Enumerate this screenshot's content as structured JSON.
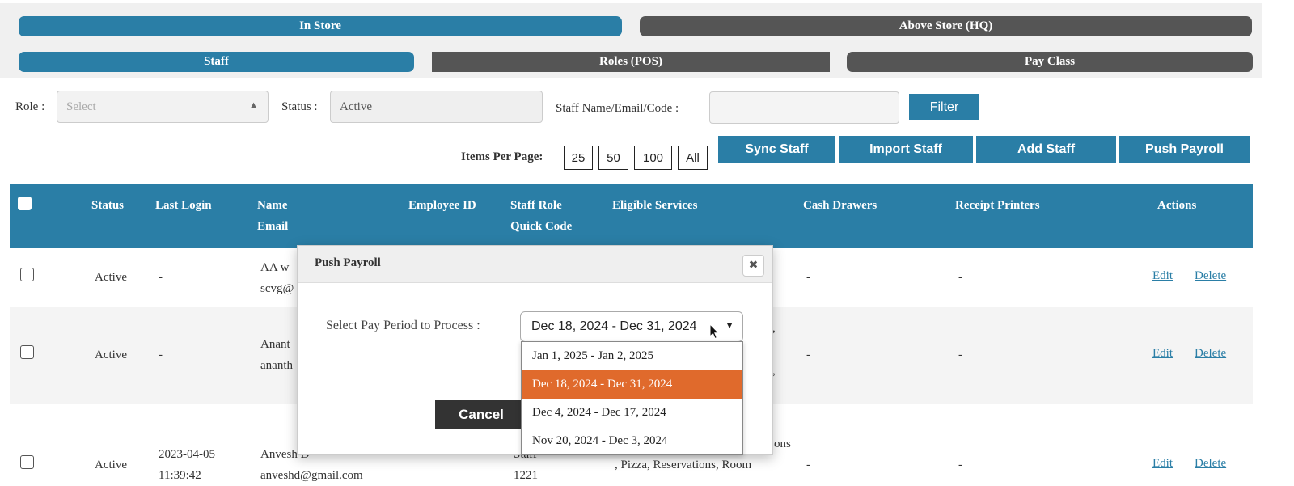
{
  "top_tabs": {
    "in_store": "In Store",
    "above_store": "Above Store (HQ)"
  },
  "sub_tabs": {
    "staff": "Staff",
    "roles": "Roles (POS)",
    "pay_class": "Pay Class"
  },
  "filters": {
    "role_label": "Role :",
    "role_placeholder": "Select",
    "status_label": "Status :",
    "status_value": "Active",
    "search_label": "Staff Name/Email/Code :",
    "search_value": "",
    "filter_button": "Filter"
  },
  "items_per_page": {
    "label": "Items Per Page:",
    "options": [
      "25",
      "50",
      "100",
      "All"
    ]
  },
  "actions": {
    "sync": "Sync Staff",
    "import": "Import Staff",
    "add": "Add Staff",
    "push": "Push Payroll"
  },
  "table": {
    "headers": {
      "status": "Status",
      "last_login": "Last Login",
      "name": "Name",
      "email": "Email",
      "employee_id": "Employee ID",
      "staff_role": "Staff Role",
      "quick_code": "Quick Code",
      "eligible_services": "Eligible Services",
      "cash_drawers": "Cash Drawers",
      "receipt_printers": "Receipt Printers",
      "actions": "Actions"
    },
    "rows": [
      {
        "status": "Active",
        "last_login": "-",
        "name": "AA w",
        "email": "scvg@",
        "cash": "-",
        "printers": "-",
        "edit": "Edit",
        "delete": "Delete"
      },
      {
        "status": "Active",
        "last_login": "-",
        "name": "Anant",
        "email": "ananth",
        "services_a": ",",
        "services_b": ",",
        "cash": "-",
        "printers": "-",
        "edit": "Edit",
        "delete": "Delete"
      },
      {
        "status": "Active",
        "last_login_1": "2023-04-05",
        "last_login_2": "11:39:42",
        "name": "Anvesh D",
        "email": "anveshd@gmail.com",
        "staff_role": "Staff",
        "quick_code": "1221",
        "services_a": "ons",
        "services_b": ", Pizza, Reservations, Room",
        "cash": "-",
        "printers": "-",
        "edit": "Edit",
        "delete": "Delete"
      }
    ]
  },
  "modal": {
    "title": "Push Payroll",
    "close": "✖",
    "select_label": "Select Pay Period to Process :",
    "selected": "Dec 18, 2024 - Dec 31, 2024",
    "options": [
      "Jan 1, 2025 - Jan 2, 2025",
      "Dec 18, 2024 - Dec 31, 2024",
      "Dec 4, 2024 - Dec 17, 2024",
      "Nov 20, 2024 - Dec 3, 2024"
    ],
    "cancel": "Cancel"
  },
  "colors": {
    "accent": "#2a7ea6",
    "tab_inactive": "#555555",
    "highlight": "#e06a2c"
  },
  "icons": [
    "chevron-up-icon",
    "chevron-down-icon",
    "close-icon",
    "mouse-pointer-icon"
  ]
}
